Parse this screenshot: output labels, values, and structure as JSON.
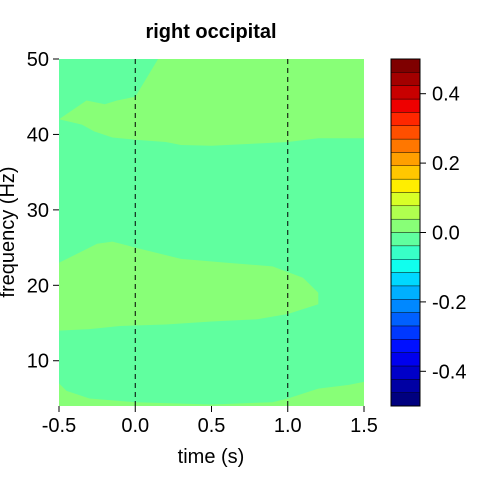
{
  "chart_data": {
    "type": "heatmap",
    "title": "right occipital",
    "xlabel": "time (s)",
    "ylabel": "frequency (Hz)",
    "xlim": [
      -0.5,
      1.5
    ],
    "ylim": [
      4,
      50
    ],
    "x_ticks": [
      -0.5,
      0.0,
      0.5,
      1.0,
      1.5
    ],
    "x_tick_labels": [
      "-0.5",
      "0.0",
      "0.5",
      "1.0",
      "1.5"
    ],
    "y_ticks": [
      10,
      20,
      30,
      40,
      50
    ],
    "y_tick_labels": [
      "10",
      "20",
      "30",
      "40",
      "50"
    ],
    "vlines": [
      0.0,
      1.0
    ],
    "colorbar": {
      "range": [
        -0.5,
        0.5
      ],
      "ticks": [
        -0.4,
        -0.2,
        0.0,
        0.2,
        0.4
      ],
      "tick_labels": [
        "-0.4",
        "-0.2",
        "0.0",
        "0.2",
        "0.4"
      ],
      "colors": [
        "#00007F",
        "#0000A3",
        "#0000C8",
        "#0000EE",
        "#0010FF",
        "#0038FF",
        "#0060FF",
        "#0088FF",
        "#00B0FF",
        "#00D8FF",
        "#10FFEE",
        "#38FFC7",
        "#60FF9F",
        "#88FF77",
        "#B0FF4F",
        "#D8FF27",
        "#FFEE00",
        "#FFC700",
        "#FF9F00",
        "#FF7700",
        "#FF4F00",
        "#FF2700",
        "#EE0000",
        "#C80000",
        "#A30000",
        "#7F0000"
      ]
    },
    "colors": {
      "background_level": "#60FF9F",
      "positive_level": "#88FF77"
    },
    "regions": [
      {
        "value": 0.05,
        "color": "#88FF77",
        "outline": [
          [
            -0.5,
            50
          ],
          [
            -0.5,
            42
          ],
          [
            -0.32,
            44.5
          ],
          [
            -0.2,
            44
          ],
          [
            -0.12,
            44.5
          ],
          [
            0.0,
            45
          ],
          [
            0.15,
            50
          ],
          [
            1.5,
            50
          ],
          [
            1.5,
            39.5
          ],
          [
            1.2,
            39.5
          ],
          [
            1.0,
            39.0
          ],
          [
            0.8,
            38.8
          ],
          [
            0.5,
            38.5
          ],
          [
            0.3,
            38.6
          ],
          [
            0.2,
            39
          ],
          [
            0.0,
            39.3
          ],
          [
            -0.15,
            39.6
          ],
          [
            -0.27,
            40.4
          ],
          [
            -0.35,
            41.3
          ],
          [
            -0.5,
            42
          ]
        ]
      },
      {
        "value": 0.05,
        "color": "#88FF77",
        "outline": [
          [
            -0.5,
            23
          ],
          [
            -0.35,
            24.5
          ],
          [
            -0.25,
            25.5
          ],
          [
            -0.15,
            25.8
          ],
          [
            0.0,
            25
          ],
          [
            0.3,
            23.5
          ],
          [
            0.6,
            23
          ],
          [
            0.9,
            22.5
          ],
          [
            1.1,
            21
          ],
          [
            1.2,
            19
          ],
          [
            1.2,
            17.5
          ],
          [
            1.0,
            16.2
          ],
          [
            0.8,
            15.5
          ],
          [
            0.5,
            15.2
          ],
          [
            0.2,
            14.8
          ],
          [
            -0.1,
            14.6
          ],
          [
            -0.3,
            14.2
          ],
          [
            -0.5,
            14
          ]
        ]
      },
      {
        "value": 0.05,
        "color": "#88FF77",
        "outline": [
          [
            -0.5,
            7
          ],
          [
            -0.45,
            6
          ],
          [
            -0.3,
            5
          ],
          [
            0.0,
            4.5
          ],
          [
            0.5,
            4.2
          ],
          [
            0.9,
            4.5
          ],
          [
            1.0,
            5
          ],
          [
            1.2,
            6.3
          ],
          [
            1.4,
            6.8
          ],
          [
            1.5,
            7.2
          ],
          [
            1.5,
            4
          ],
          [
            -0.5,
            4
          ]
        ]
      }
    ]
  }
}
